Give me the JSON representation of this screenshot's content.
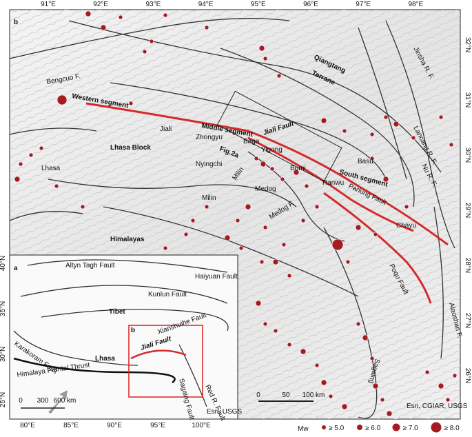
{
  "main": {
    "lon_labels": [
      "91°E",
      "92°E",
      "93°E",
      "94°E",
      "95°E",
      "96°E",
      "97°E",
      "98°E"
    ],
    "lat_labels": [
      "32°N",
      "31°N",
      "30°N",
      "29°N",
      "28°N",
      "27°N",
      "26°N"
    ],
    "labels": [
      "b",
      "Bengcuo F.",
      "Western segment",
      "Jiali",
      "Middle segment",
      "Zhongyu",
      "Baga",
      "Yigong",
      "Fig.2a",
      "Lhasa Block",
      "Lhasa",
      "Nyingchi",
      "Milin",
      "Milin",
      "Medog",
      "Bomi",
      "Basu",
      "Ranwu",
      "South segment",
      "Parlung Fault",
      "Chayu",
      "Medog F.",
      "Jiali Fault",
      "Qiangtang",
      "Terrane",
      "Jinsha R. F.",
      "Lancang R. F.",
      "Nu R. F.",
      "Himalayas",
      "Poqu Fault",
      "Alaoshan F.",
      "Sagaing",
      "Esri, CGIAR, USGS"
    ],
    "scale": [
      "0",
      "50",
      "100 km"
    ]
  },
  "inset": {
    "lat_labels": [
      "40°N",
      "35°N",
      "30°N",
      "25°N"
    ],
    "lon_labels": [
      "80°E",
      "85°E",
      "90°E",
      "95°E",
      "100°E"
    ],
    "labels": [
      "a",
      "Altyn Tagh Fault",
      "Haiyuan Fault",
      "Kunlun Fault",
      "Tibet",
      "Xianshuihe Fault",
      "Karakoram Fault",
      "b",
      "Jiali Fault",
      "Lhasa",
      "Himalaya Frontal Thrust",
      "Sagaing Fault",
      "Red R. Fault",
      "Esri, USGS"
    ],
    "scale": [
      "0",
      "300",
      "600 km"
    ]
  },
  "legend": {
    "title": "Mw",
    "items": [
      "≥ 5.0",
      "≥ 6.0",
      "≥ 7.0",
      "≥ 8.0"
    ]
  }
}
